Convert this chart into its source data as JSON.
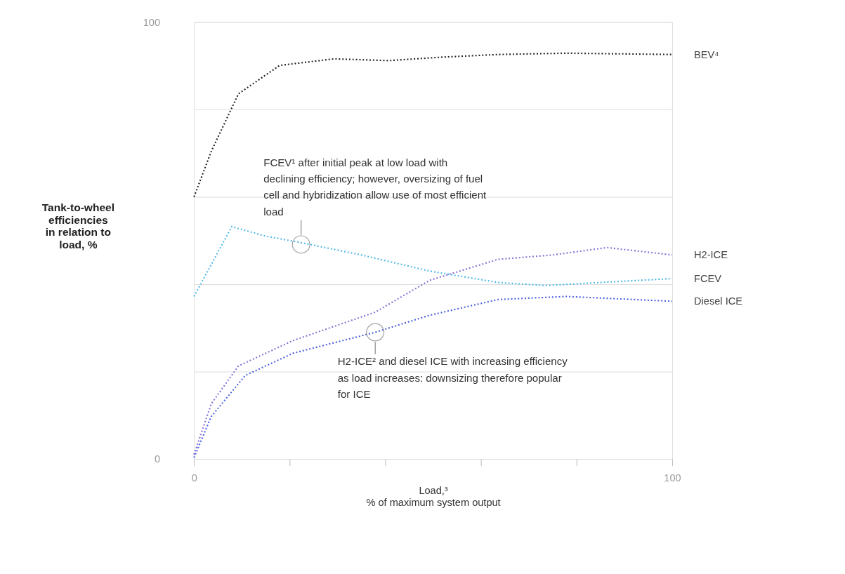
{
  "chart_data": {
    "type": "line",
    "ylabel": "Tank-to-wheel efficiencies in relation to load, %",
    "xlabel": "Load,³\n% of maximum system output",
    "xlim": [
      0,
      100
    ],
    "ylim": [
      0,
      100
    ],
    "xticks": [
      {
        "value": 0,
        "label": "0"
      },
      {
        "value": 20,
        "label": null
      },
      {
        "value": 40,
        "label": null
      },
      {
        "value": 60,
        "label": null
      },
      {
        "value": 80,
        "label": null
      },
      100
    ],
    "yticks": [
      {
        "value": 0,
        "label": "0"
      },
      {
        "value": 20,
        "label": null
      },
      {
        "value": 40,
        "label": null
      },
      {
        "value": 60,
        "label": null
      },
      {
        "value": 80,
        "label": null
      },
      100
    ],
    "grid": "y",
    "legend": false,
    "line_style": "dotted",
    "marker": "none",
    "series": [
      {
        "name": "BEV⁴",
        "color": "#222222",
        "x": [
          0,
          3.6,
          9.3,
          17.9,
          29.3,
          40.7,
          52,
          63.6,
          77.9,
          100
        ],
        "values": [
          60,
          70.4,
          83.6,
          90.1,
          91.6,
          91.2,
          92,
          92.6,
          92.9,
          92.6
        ]
      },
      {
        "name": "H2-ICE",
        "color": "#8a6fd6",
        "x": [
          0,
          3.6,
          9.3,
          20.7,
          37.9,
          49.3,
          63.6,
          75,
          86.4,
          100
        ],
        "values": [
          1,
          12.6,
          21.3,
          27.1,
          33.6,
          40.9,
          45.7,
          46.7,
          48.4,
          46.7
        ]
      },
      {
        "name": "FCEV",
        "color": "#4db8e8",
        "x": [
          0,
          7.9,
          15,
          22,
          35,
          49.3,
          63.6,
          73.6,
          85,
          100
        ],
        "values": [
          37.2,
          53.2,
          51,
          49.6,
          46.7,
          43,
          40.4,
          39.7,
          40.4,
          41.3
        ]
      },
      {
        "name": "Diesel ICE",
        "color": "#4a5ee0",
        "x": [
          0,
          3.6,
          10.7,
          20.7,
          37.9,
          49.3,
          63.6,
          77.9,
          100
        ],
        "values": [
          0.3,
          9.7,
          19.1,
          24.2,
          29,
          32.9,
          36.5,
          37.2,
          36.1
        ]
      }
    ],
    "annotations": [
      {
        "text": "FCEV¹ after initial peak at low load with declining efficiency; however, oversizing of fuel cell and hybridization allow use of most efficient load",
        "x": 22.4,
        "y": 49.1
      },
      {
        "text": "H2-ICE² and diesel ICE with increasing efficiency as load increases: downsizing therefore popular for ICE",
        "x": 37.9,
        "y": 29
      }
    ]
  }
}
